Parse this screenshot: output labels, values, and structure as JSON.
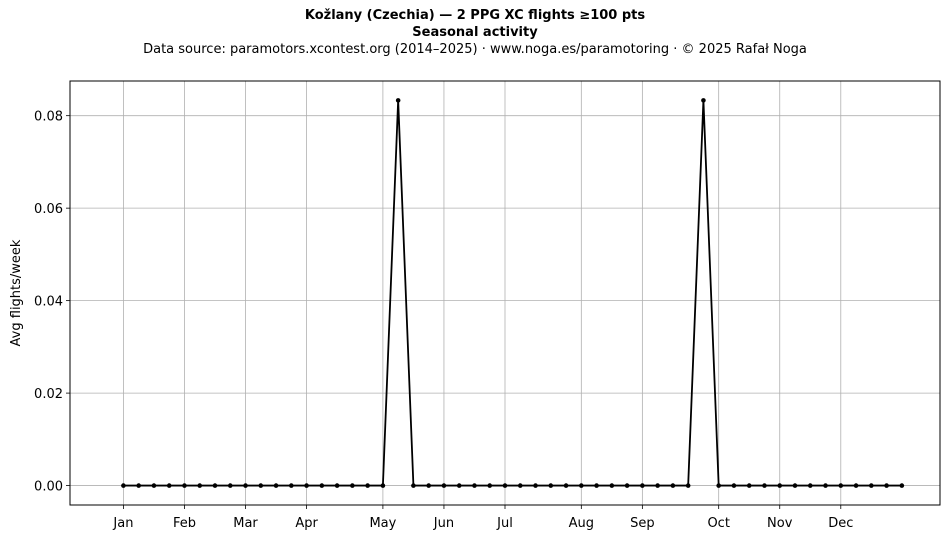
{
  "titles": {
    "line1": "Kožlany (Czechia)  —  2 PPG XC flights ≥100 pts",
    "line2": "Seasonal activity",
    "line3": "Data source: paramotors.xcontest.org (2014–2025)  ·  www.noga.es/paramotoring  ·  © 2025 Rafał Noga"
  },
  "chart_data": {
    "type": "line",
    "title": "Kožlany (Czechia)  —  2 PPG XC flights ≥100 pts",
    "subtitle": "Seasonal activity",
    "xlabel": "",
    "ylabel": "Avg flights/week",
    "x_unit": "ISO week",
    "xlim": [
      -2.5,
      54.5
    ],
    "ylim": [
      -0.0042,
      0.0875
    ],
    "x_ticks": [
      {
        "week": 1,
        "label": "Jan"
      },
      {
        "week": 5,
        "label": "Feb"
      },
      {
        "week": 9,
        "label": "Mar"
      },
      {
        "week": 13,
        "label": "Apr"
      },
      {
        "week": 18,
        "label": "May"
      },
      {
        "week": 22,
        "label": "Jun"
      },
      {
        "week": 26,
        "label": "Jul"
      },
      {
        "week": 31,
        "label": "Aug"
      },
      {
        "week": 35,
        "label": "Sep"
      },
      {
        "week": 40,
        "label": "Oct"
      },
      {
        "week": 44,
        "label": "Nov"
      },
      {
        "week": 48,
        "label": "Dec"
      }
    ],
    "y_ticks": [
      0.0,
      0.02,
      0.04,
      0.06,
      0.08
    ],
    "y_tick_labels": [
      "0.00",
      "0.02",
      "0.04",
      "0.06",
      "0.08"
    ],
    "grid": true,
    "series": [
      {
        "color": "#000000",
        "x": [
          1,
          2,
          3,
          4,
          5,
          6,
          7,
          8,
          9,
          10,
          11,
          12,
          13,
          14,
          15,
          16,
          17,
          18,
          19,
          20,
          21,
          22,
          23,
          24,
          25,
          26,
          27,
          28,
          29,
          30,
          31,
          32,
          33,
          34,
          35,
          36,
          37,
          38,
          39,
          40,
          41,
          42,
          43,
          44,
          45,
          46,
          47,
          48,
          49,
          50,
          51,
          52
        ],
        "y": [
          0,
          0,
          0,
          0,
          0,
          0,
          0,
          0,
          0,
          0,
          0,
          0,
          0,
          0,
          0,
          0,
          0,
          0,
          0.0833,
          0,
          0,
          0,
          0,
          0,
          0,
          0,
          0,
          0,
          0,
          0,
          0,
          0,
          0,
          0,
          0,
          0,
          0,
          0,
          0.0833,
          0,
          0,
          0,
          0,
          0,
          0,
          0,
          0,
          0,
          0,
          0,
          0,
          0
        ]
      }
    ]
  }
}
